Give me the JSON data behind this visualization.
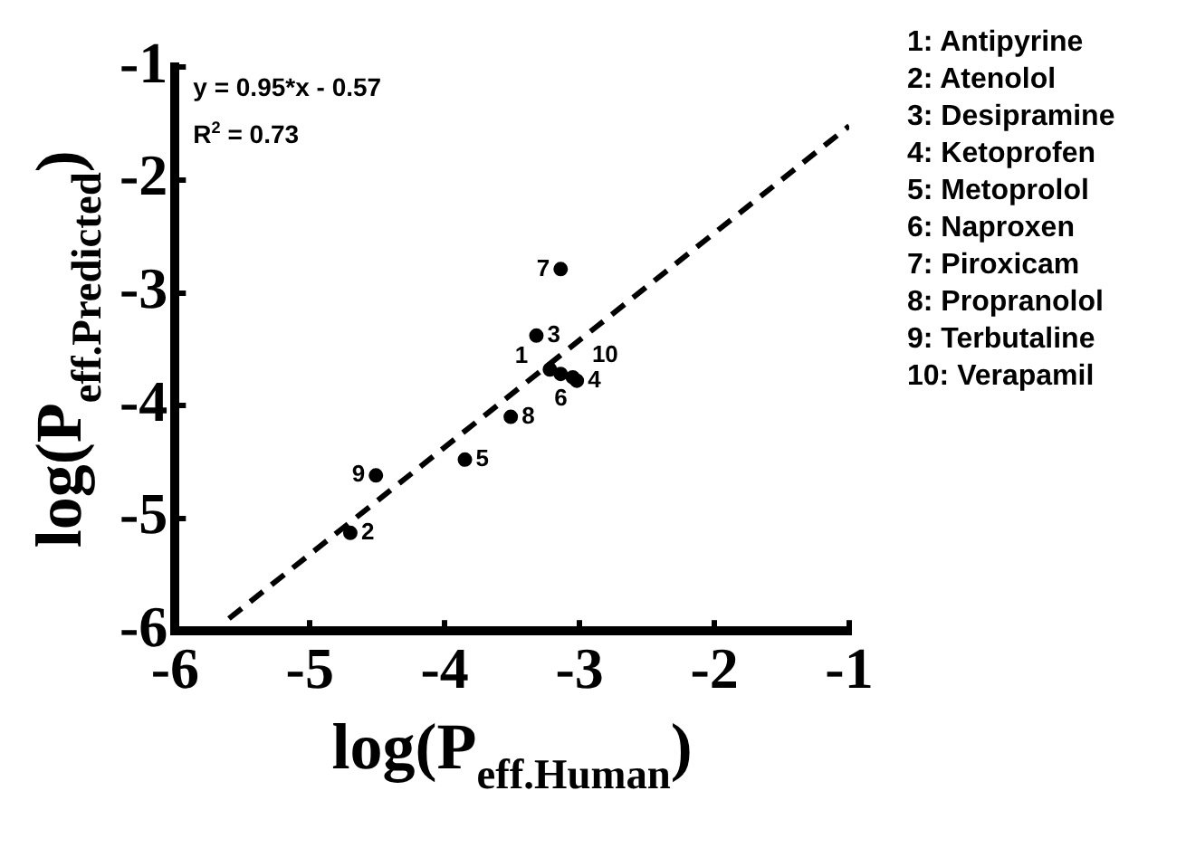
{
  "chart_data": {
    "type": "scatter",
    "xlabel": "log(P$_{eff.Human}$)",
    "ylabel": "log(P$_{eff.Predicted}$)",
    "xlim": [
      -6,
      -1
    ],
    "ylim": [
      -6,
      -1
    ],
    "xticks": [
      -6,
      -5,
      -4,
      -3,
      -2,
      -1
    ],
    "yticks": [
      -6,
      -5,
      -4,
      -3,
      -2,
      -1
    ],
    "grid": false,
    "marker": "circle",
    "annotations": [
      "y = 0.95*x - 0.57",
      "R$^{2}$ = 0.73",
      "1: Antipyrine",
      "2: Atenolol",
      "3: Desipramine",
      "4: Ketoprofen",
      "5: Metoprolol",
      "6: Naproxen",
      "7: Piroxicam",
      "8: Propranolol",
      "9: Terbutaline",
      "10: Verapamil",
      {
        "text": "1",
        "x": -3.22,
        "y": -3.68
      },
      {
        "text": "2",
        "x": -4.7,
        "y": -5.13
      },
      {
        "text": "3",
        "x": -3.32,
        "y": -3.38
      },
      {
        "text": "4",
        "x": -3.02,
        "y": -3.78
      },
      {
        "text": "5",
        "x": -3.85,
        "y": -4.48
      },
      {
        "text": "6",
        "x": -3.05,
        "y": -3.75
      },
      {
        "text": "7",
        "x": -3.14,
        "y": -2.79
      },
      {
        "text": "8",
        "x": -3.51,
        "y": -4.1
      },
      {
        "text": "9",
        "x": -4.51,
        "y": -4.62
      },
      {
        "text": "10",
        "x": -3.14,
        "y": -3.72
      }
    ],
    "series": [
      {
        "type": "scatter",
        "color": "#000000",
        "x": [
          -3.22,
          -4.7,
          -3.32,
          -3.02,
          -3.85,
          -3.05,
          -3.14,
          -3.51,
          -4.51,
          -3.14
        ],
        "values": [
          -3.68,
          -5.13,
          -3.38,
          -3.78,
          -4.48,
          -3.75,
          -2.79,
          -4.1,
          -4.62,
          -3.72
        ]
      },
      {
        "type": "line",
        "color": "#000000",
        "line_style": "dashed",
        "marker": "none",
        "x": [
          -5.6,
          -1
        ],
        "values": [
          -5.89,
          -1.52
        ]
      }
    ]
  }
}
